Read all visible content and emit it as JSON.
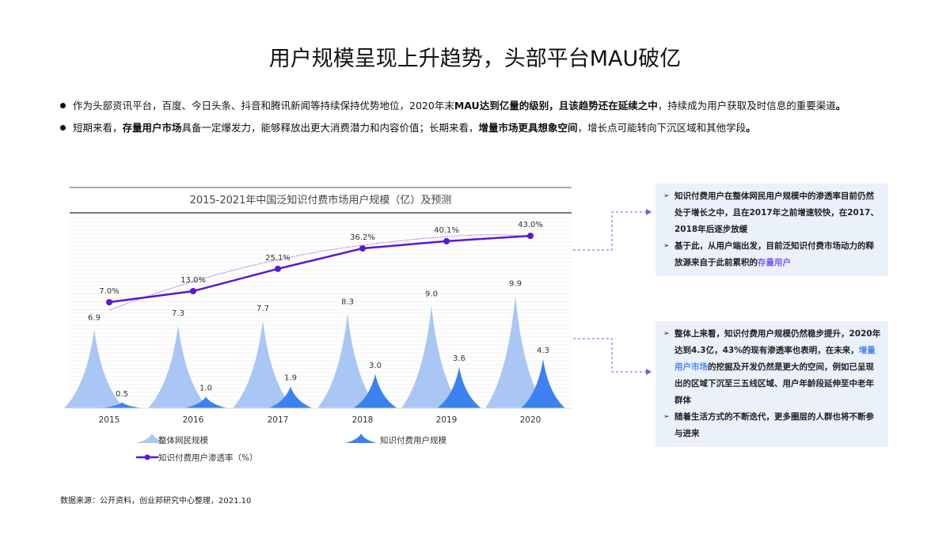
{
  "title": "用户规模呈现上升趋势，头部平台MAU破亿",
  "bullets": [
    {
      "parts": [
        [
          "作为头部资讯平台，百度、今日头条、抖音和腾讯新闻等持续保持优势地位，2020年末",
          false
        ],
        [
          "MAU达到亿量的级别，且该趋势还在延续之中",
          true
        ],
        [
          "，持续成为用户获取及时信息的重要渠道",
          false
        ],
        [
          "。",
          true
        ]
      ]
    },
    {
      "parts": [
        [
          "短期来看，",
          false
        ],
        [
          "存量用户市场",
          true
        ],
        [
          "具备一定爆发力，能够释放出更大消费潜力和内容价值；长期来看，",
          false
        ],
        [
          "增量市场更具想象空间",
          true
        ],
        [
          "，增长点可能转向下沉区域和其他学段",
          false
        ],
        [
          "。",
          true
        ]
      ]
    }
  ],
  "chart_data": {
    "type": "bar+line",
    "title": "2015-2021年中国泛知识付费市场用户规模（亿）及预测",
    "categories": [
      "2015",
      "2016",
      "2017",
      "2018",
      "2019",
      "2020"
    ],
    "series": [
      {
        "name": "整体网民规模",
        "type": "bar",
        "color": "#a9c6f5",
        "values": [
          6.9,
          7.3,
          7.7,
          8.3,
          9.0,
          9.9
        ],
        "labels": [
          "6.9",
          "7.3",
          "7.7",
          "8.3",
          "9.0",
          "9.9"
        ]
      },
      {
        "name": "知识付费用户规模",
        "type": "bar",
        "color": "#3b82f0",
        "values": [
          0.5,
          1.0,
          1.9,
          3.0,
          3.6,
          4.3
        ],
        "labels": [
          "0.5",
          "1.0",
          "1.9",
          "3.0",
          "3.6",
          "4.3"
        ]
      },
      {
        "name": "知识付费用户渗透率（%）",
        "type": "line",
        "color": "#5b16d8",
        "values": [
          7.0,
          13.0,
          25.1,
          36.2,
          40.1,
          43.0
        ],
        "labels": [
          "7.0%",
          "13.0%",
          "25.1%",
          "36.2%",
          "40.1%",
          "43.0%"
        ]
      }
    ],
    "legend": "bottom"
  },
  "box1": {
    "items": [
      {
        "text": "知识付费用户在整体网民用户规模中的渗透率目前仍然处于增长之中，且在2017年之前增速较快，在2017、2018年后逐步放缓"
      },
      {
        "text": "基于此，从用户端出发，目前泛知识付费市场动力的释放源来自于此前累积的",
        "hl": "存量用户"
      }
    ]
  },
  "box2": {
    "items": [
      {
        "text": "整体上来看，知识付费用户规模仍然稳步提升，2020年达到4.3亿，43%的现有渗透率也表明，在未来，",
        "hl": "增量用户市场",
        "after": "的挖掘及开发仍然是更大的空间，例如已呈现出的区域下沉至三五线区域、用户年龄段延伸至中老年群体"
      },
      {
        "text": "随着生活方式的不断迭代，更多圈层的人群也将不断参与进来"
      }
    ]
  },
  "source": "数据来源：公开资料，创业邦研究中心整理，2021.10"
}
